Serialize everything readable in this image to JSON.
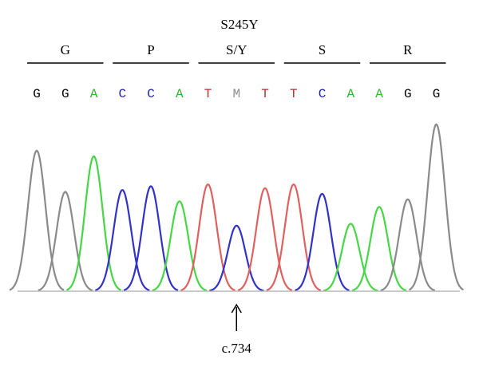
{
  "title": "S245Y",
  "codons": [
    {
      "aa": "G"
    },
    {
      "aa": "P"
    },
    {
      "aa": "S/Y"
    },
    {
      "aa": "S"
    },
    {
      "aa": "R"
    }
  ],
  "bases": [
    "G",
    "G",
    "A",
    "C",
    "C",
    "A",
    "T",
    "M",
    "T",
    "T",
    "C",
    "A",
    "A",
    "G",
    "G"
  ],
  "base_colors": {
    "G": "#000000",
    "A": "#2fb52f",
    "C": "#1f1fa8",
    "T": "#b0302f",
    "M": "#8c8c8c"
  },
  "trace_colors": {
    "G": "#8a8a8a",
    "A": "#46d646",
    "C": "#3232c8",
    "T": "#e06060"
  },
  "peaks": [
    {
      "base": "G",
      "color": "G",
      "height": 0.75
    },
    {
      "base": "G",
      "color": "G",
      "height": 0.53
    },
    {
      "base": "A",
      "color": "A",
      "height": 0.72
    },
    {
      "base": "C",
      "color": "C",
      "height": 0.54
    },
    {
      "base": "C",
      "color": "C",
      "height": 0.56
    },
    {
      "base": "A",
      "color": "A",
      "height": 0.48
    },
    {
      "base": "T",
      "color": "T",
      "height": 0.57
    },
    {
      "base": "M",
      "color": "C",
      "height": 0.35
    },
    {
      "base": "T",
      "color": "T",
      "height": 0.55
    },
    {
      "base": "T",
      "color": "T",
      "height": 0.57
    },
    {
      "base": "C",
      "color": "C",
      "height": 0.52
    },
    {
      "base": "A",
      "color": "A",
      "height": 0.36
    },
    {
      "base": "A",
      "color": "A",
      "height": 0.45
    },
    {
      "base": "G",
      "color": "G",
      "height": 0.49
    },
    {
      "base": "G",
      "color": "G",
      "height": 0.89
    }
  ],
  "mutation_label": "c.734",
  "mutation_index": 7
}
